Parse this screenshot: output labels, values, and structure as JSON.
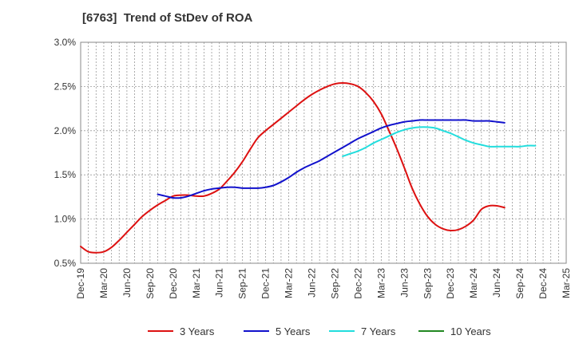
{
  "chart_data": {
    "type": "line",
    "title": "[6763]  Trend of StDev of ROA",
    "xlabel": "",
    "ylabel": "",
    "x_ticks": [
      "Dec-19",
      "Mar-20",
      "Jun-20",
      "Sep-20",
      "Dec-20",
      "Mar-21",
      "Jun-21",
      "Sep-21",
      "Dec-21",
      "Mar-22",
      "Jun-22",
      "Sep-22",
      "Dec-22",
      "Mar-23",
      "Jun-23",
      "Sep-23",
      "Dec-23",
      "Mar-24",
      "Jun-24",
      "Sep-24",
      "Dec-24",
      "Mar-25"
    ],
    "y_ticks": [
      "0.5%",
      "1.0%",
      "1.5%",
      "2.0%",
      "2.5%",
      "3.0%"
    ],
    "ylim": [
      0.5,
      3.0
    ],
    "grid": true,
    "legend_position": "bottom",
    "series": [
      {
        "name": "3 Years",
        "color": "#dd1111",
        "start_index": 0,
        "values": [
          0.69,
          0.63,
          0.62,
          0.63,
          0.68,
          0.76,
          0.85,
          0.94,
          1.03,
          1.1,
          1.16,
          1.21,
          1.26,
          1.27,
          1.27,
          1.26,
          1.26,
          1.29,
          1.34,
          1.43,
          1.53,
          1.65,
          1.79,
          1.92,
          2.0,
          2.07,
          2.14,
          2.21,
          2.28,
          2.35,
          2.41,
          2.46,
          2.5,
          2.53,
          2.54,
          2.53,
          2.5,
          2.43,
          2.33,
          2.19,
          2.0,
          1.8,
          1.58,
          1.35,
          1.17,
          1.03,
          0.94,
          0.89,
          0.87,
          0.88,
          0.92,
          0.99,
          1.11,
          1.15,
          1.15,
          1.13
        ]
      },
      {
        "name": "5 Years",
        "color": "#1111cc",
        "start_index": 10,
        "values": [
          1.28,
          1.26,
          1.24,
          1.24,
          1.26,
          1.29,
          1.32,
          1.34,
          1.35,
          1.36,
          1.36,
          1.35,
          1.35,
          1.35,
          1.36,
          1.38,
          1.42,
          1.47,
          1.53,
          1.58,
          1.62,
          1.66,
          1.71,
          1.76,
          1.81,
          1.86,
          1.91,
          1.95,
          1.99,
          2.03,
          2.06,
          2.08,
          2.1,
          2.11,
          2.12,
          2.12,
          2.12,
          2.12,
          2.12,
          2.12,
          2.12,
          2.11,
          2.11,
          2.11,
          2.1,
          2.09
        ]
      },
      {
        "name": "7 Years",
        "color": "#22dddd",
        "start_index": 34,
        "values": [
          1.71,
          1.74,
          1.77,
          1.81,
          1.86,
          1.9,
          1.94,
          1.98,
          2.01,
          2.03,
          2.04,
          2.04,
          2.03,
          2.0,
          1.97,
          1.93,
          1.89,
          1.86,
          1.84,
          1.82,
          1.82,
          1.82,
          1.82,
          1.82,
          1.83,
          1.83
        ]
      },
      {
        "name": "10 Years",
        "color": "#228822",
        "start_index": 0,
        "values": []
      }
    ]
  }
}
